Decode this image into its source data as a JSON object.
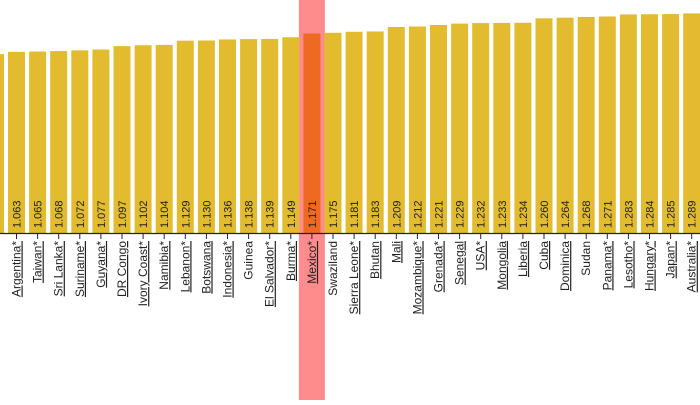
{
  "chart_data": {
    "type": "bar",
    "bar_color": "#E2BB2E",
    "highlight_bar_color": "#EE6A22",
    "highlight_band_color": "#FF8C8C",
    "axis_color": "#222222",
    "highlight_category": "Mexico*",
    "ylim": [
      0,
      1.35
    ],
    "categories": [
      "Argentina*",
      "Taiwan*",
      "Sri Lanka*",
      "Suriname*",
      "Guyana*",
      "DR Congo",
      "Ivory Coast*",
      "Namibia*",
      "Lebanon*",
      "Botswana",
      "Indonesia*",
      "Guinea",
      "El Salvador*",
      "Burma*",
      "Mexico*",
      "Swaziland",
      "Sierra Leone*",
      "Bhutan",
      "Mali",
      "Mozambique*",
      "Grenada*",
      "Senegal",
      "USA*",
      "Mongolia",
      "Liberia",
      "Cuba",
      "Dominica",
      "Sudan",
      "Panama*",
      "Lesotho*",
      "Hungary*",
      "Japan*",
      "Australia*"
    ],
    "values": [
      1.063,
      1.065,
      1.068,
      1.072,
      1.077,
      1.097,
      1.102,
      1.104,
      1.129,
      1.13,
      1.136,
      1.138,
      1.139,
      1.149,
      1.171,
      1.175,
      1.181,
      1.183,
      1.209,
      1.212,
      1.221,
      1.229,
      1.232,
      1.233,
      1.234,
      1.26,
      1.264,
      1.268,
      1.271,
      1.283,
      1.284,
      1.285,
      1.289
    ],
    "value_labels": [
      "1.063",
      "1.065",
      "1.068",
      "1.072",
      "1.077",
      "1.097",
      "1.102",
      "1.104",
      "1.129",
      "1.130",
      "1.136",
      "1.138",
      "1.139",
      "1.149",
      "1.171",
      "1.175",
      "1.181",
      "1.183",
      "1.209",
      "1.212",
      "1.221",
      "1.229",
      "1.232",
      "1.233",
      "1.234",
      "1.260",
      "1.264",
      "1.268",
      "1.271",
      "1.283",
      "1.284",
      "1.285",
      "1.289"
    ],
    "underlined": [
      true,
      true,
      true,
      true,
      true,
      true,
      true,
      true,
      true,
      true,
      true,
      false,
      true,
      true,
      true,
      false,
      true,
      true,
      true,
      true,
      true,
      true,
      true,
      true,
      true,
      true,
      true,
      false,
      true,
      true,
      true,
      true,
      true
    ],
    "partial_bar_value": 1.05
  }
}
